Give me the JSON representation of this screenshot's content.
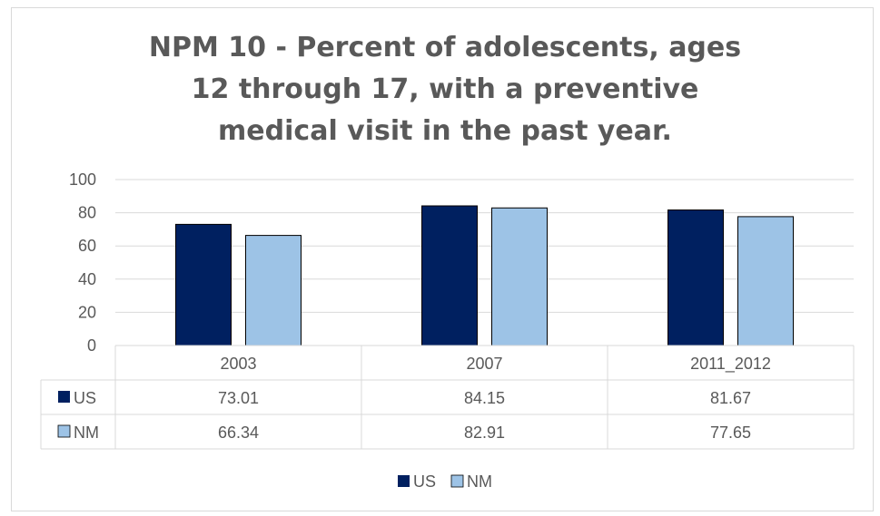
{
  "chart_data": {
    "type": "bar",
    "title": "NPM 10 - Percent of adolescents, ages 12 through 17, with a preventive medical visit in the past year.",
    "categories": [
      "2003",
      "2007",
      "2011_2012"
    ],
    "series": [
      {
        "name": "US",
        "values": [
          73.01,
          84.15,
          81.67
        ],
        "color": "#002060"
      },
      {
        "name": "NM",
        "values": [
          66.34,
          82.91,
          77.65
        ],
        "color": "#9dc3e6"
      }
    ],
    "table_values": [
      [
        "73.01",
        "84.15",
        "81.67"
      ],
      [
        "66.34",
        "82.91",
        "77.65"
      ]
    ],
    "y_ticks": [
      "0",
      "20",
      "40",
      "60",
      "80",
      "100"
    ],
    "ylim": [
      0,
      100
    ],
    "grid": true,
    "legend": "bottom",
    "data_table": true
  }
}
